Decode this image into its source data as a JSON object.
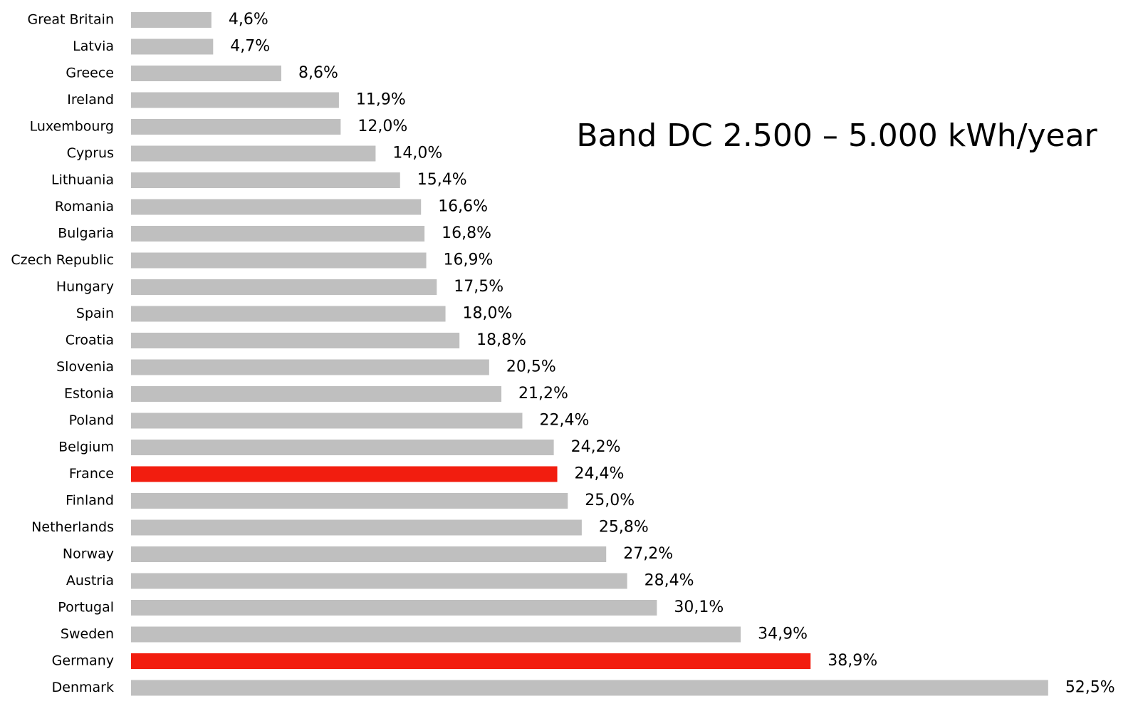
{
  "chart_data": {
    "type": "hbar",
    "title": "Band DC 2.500 – 5.000 kWh/year",
    "categories": [
      "Great Britain",
      "Latvia",
      "Greece",
      "Ireland",
      "Luxembourg",
      "Cyprus",
      "Lithuania",
      "Romania",
      "Bulgaria",
      "Czech Republic",
      "Hungary",
      "Spain",
      "Croatia",
      "Slovenia",
      "Estonia",
      "Poland",
      "Belgium",
      "France",
      "Finland",
      "Netherlands",
      "Norway",
      "Austria",
      "Portugal",
      "Sweden",
      "Germany",
      "Denmark"
    ],
    "values": [
      4.6,
      4.7,
      8.6,
      11.9,
      12.0,
      14.0,
      15.4,
      16.6,
      16.8,
      16.9,
      17.5,
      18.0,
      18.8,
      20.5,
      21.2,
      22.4,
      24.2,
      24.4,
      25.0,
      25.8,
      27.2,
      28.4,
      30.1,
      34.9,
      38.9,
      52.5
    ],
    "value_labels": [
      "4,6%",
      "4,7%",
      "8,6%",
      "11,9%",
      "12,0%",
      "14,0%",
      "15,4%",
      "16,6%",
      "16,8%",
      "16,9%",
      "17,5%",
      "18,0%",
      "18,8%",
      "20,5%",
      "21,2%",
      "22,4%",
      "24,2%",
      "24,4%",
      "25,0%",
      "25,8%",
      "27,2%",
      "28,4%",
      "30,1%",
      "34,9%",
      "38,9%",
      "52,5%"
    ],
    "colors": [
      "#bfbfbf",
      "#bfbfbf",
      "#bfbfbf",
      "#bfbfbf",
      "#bfbfbf",
      "#bfbfbf",
      "#bfbfbf",
      "#bfbfbf",
      "#bfbfbf",
      "#bfbfbf",
      "#bfbfbf",
      "#bfbfbf",
      "#bfbfbf",
      "#bfbfbf",
      "#bfbfbf",
      "#bfbfbf",
      "#bfbfbf",
      "#f21d0f",
      "#bfbfbf",
      "#bfbfbf",
      "#bfbfbf",
      "#bfbfbf",
      "#bfbfbf",
      "#bfbfbf",
      "#f21d0f",
      "#bfbfbf"
    ]
  }
}
